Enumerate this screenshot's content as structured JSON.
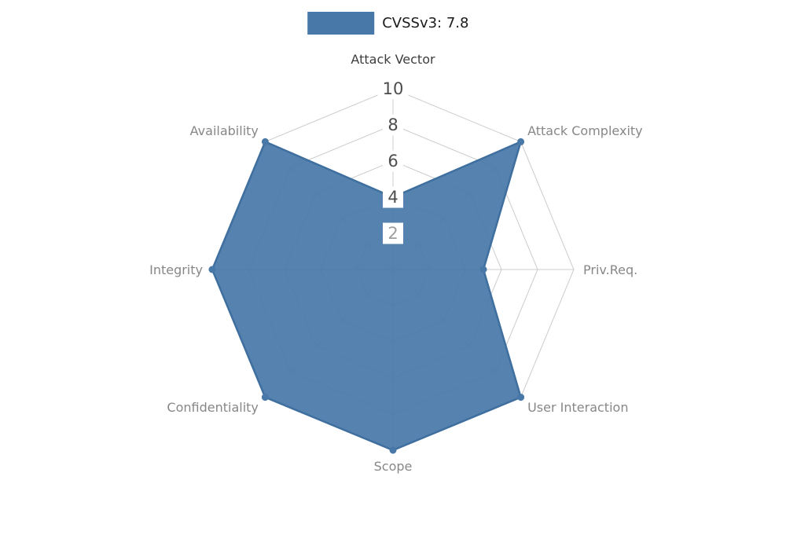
{
  "legend": {
    "label": "CVSSv3: 7.8"
  },
  "chart_data": {
    "type": "radar",
    "title": "CVSSv3: 7.8",
    "score": 7.8,
    "max": 10,
    "grid": true,
    "legend_position": "top",
    "rings": [
      {
        "value": 2,
        "label": "2",
        "label_color": "#9e9e9e"
      },
      {
        "value": 4,
        "label": "4",
        "label_color": "#4d4d4d"
      },
      {
        "value": 6,
        "label": "6",
        "label_color": "#4d4d4d"
      },
      {
        "value": 8,
        "label": "8",
        "label_color": "#4d4d4d"
      },
      {
        "value": 10,
        "label": "10",
        "label_color": "#4d4d4d"
      }
    ],
    "axes": [
      {
        "label": "Attack Vector",
        "value": 4,
        "label_color": "#3d3d3d"
      },
      {
        "label": "Attack Complexity",
        "value": 10,
        "label_color": "#878787"
      },
      {
        "label": "Priv.Req.",
        "value": 5,
        "label_color": "#878787"
      },
      {
        "label": "User Interaction",
        "value": 10,
        "label_color": "#878787"
      },
      {
        "label": "Scope",
        "value": 10,
        "label_color": "#878787"
      },
      {
        "label": "Confidentiality",
        "value": 10,
        "label_color": "#878787"
      },
      {
        "label": "Integrity",
        "value": 10,
        "label_color": "#878787"
      },
      {
        "label": "Availability",
        "value": 10,
        "label_color": "#878787"
      }
    ],
    "colors": {
      "series_fill": "#4878a8",
      "series_stroke": "#3f6f9f",
      "grid": "#cccccc",
      "background": "#ffffff"
    }
  }
}
